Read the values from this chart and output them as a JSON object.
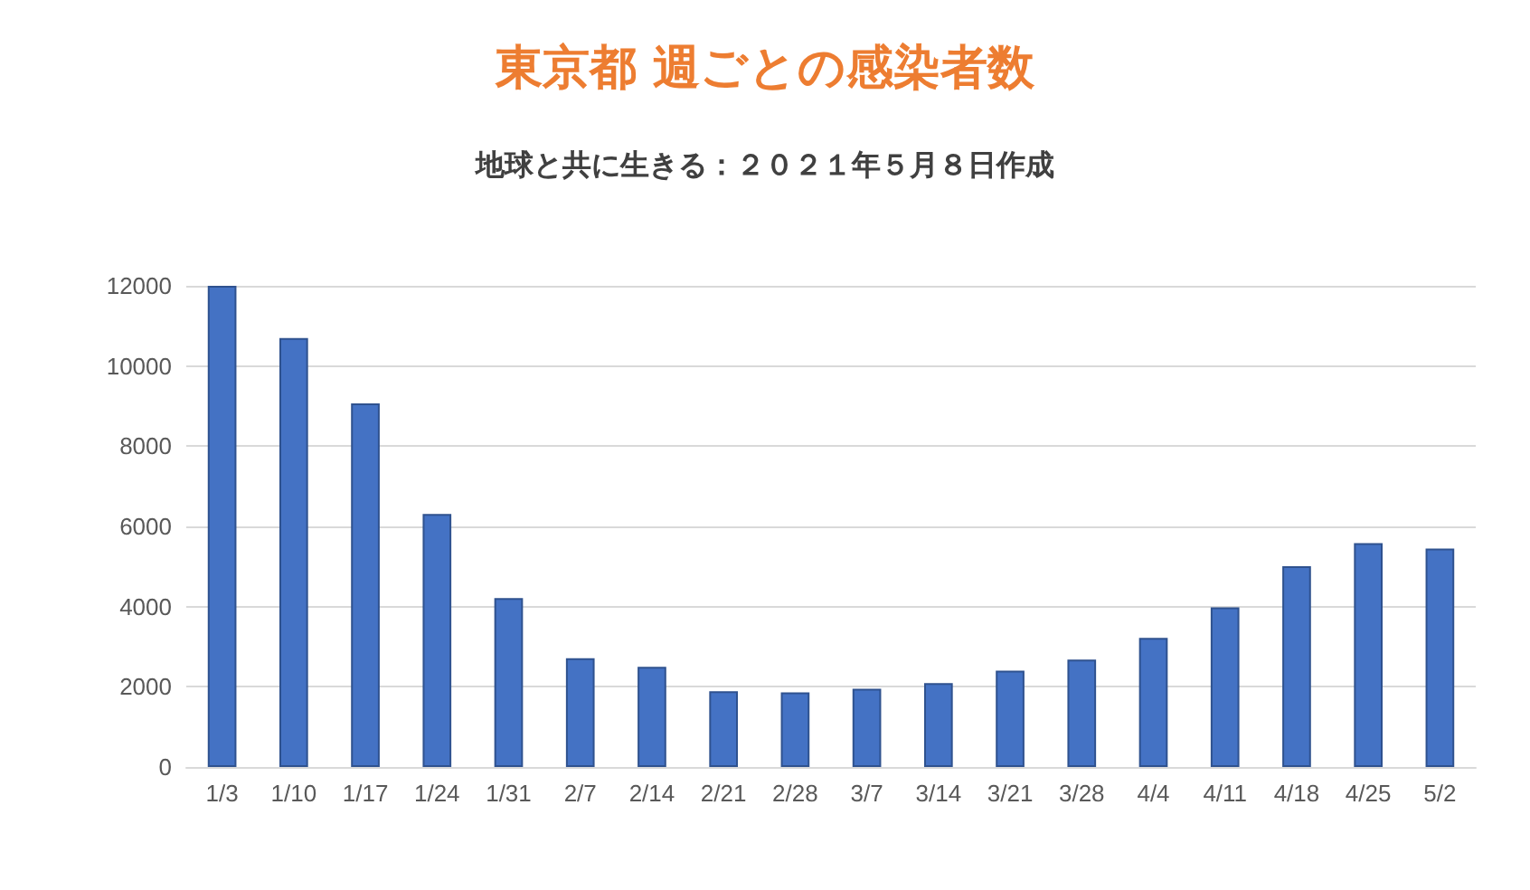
{
  "chart_data": {
    "type": "bar",
    "title": "東京都 週ごとの感染者数",
    "subtitle": "地球と共に生きる：２０２１年５月８日作成",
    "categories": [
      "1/3",
      "1/10",
      "1/17",
      "1/24",
      "1/31",
      "2/7",
      "2/14",
      "2/21",
      "2/28",
      "3/7",
      "3/14",
      "3/21",
      "3/28",
      "4/4",
      "4/11",
      "4/18",
      "4/25",
      "5/2"
    ],
    "values": [
      12000,
      10700,
      9070,
      6310,
      4210,
      2710,
      2500,
      1890,
      1860,
      1950,
      2090,
      2400,
      2680,
      3220,
      3980,
      5010,
      5580,
      5450
    ],
    "color": "#4472c4",
    "ylim": [
      0,
      12000
    ],
    "yticks": [
      0,
      2000,
      4000,
      6000,
      8000,
      10000,
      12000
    ],
    "grid": "y"
  }
}
